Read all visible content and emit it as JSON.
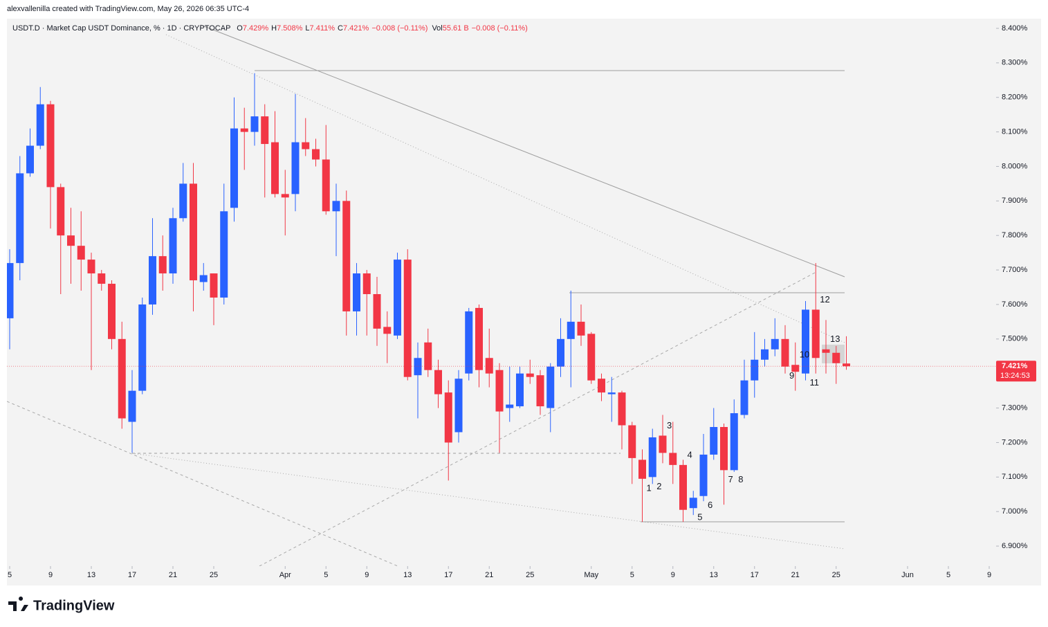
{
  "header": {
    "credit": "alexvallenilla created with TradingView.com, May 26, 2026 06:35 UTC-4",
    "symbol": "USDT.D · Market Cap USDT Dominance, % · 1D · CRYPTOCAP",
    "ohlc": [
      {
        "label": "O",
        "value": "7.429%"
      },
      {
        "label": "H",
        "value": "7.508%"
      },
      {
        "label": "L",
        "value": "7.411%"
      },
      {
        "label": "C",
        "value": "7.421%"
      }
    ],
    "change": "−0.008 (−0.11%)",
    "volume_label": "Vol",
    "volume": "55.61 B",
    "volume_change": "−0.008 (−0.11%)"
  },
  "chart_data": {
    "type": "candlestick",
    "x": [
      "2026-03-05",
      "2026-03-06",
      "2026-03-07",
      "2026-03-08",
      "2026-03-09",
      "2026-03-10",
      "2026-03-11",
      "2026-03-12",
      "2026-03-13",
      "2026-03-14",
      "2026-03-15",
      "2026-03-16",
      "2026-03-17",
      "2026-03-18",
      "2026-03-19",
      "2026-03-20",
      "2026-03-21",
      "2026-03-22",
      "2026-03-23",
      "2026-03-24",
      "2026-03-25",
      "2026-03-26",
      "2026-03-27",
      "2026-03-28",
      "2026-03-29",
      "2026-03-30",
      "2026-03-31",
      "2026-04-01",
      "2026-04-02",
      "2026-04-03",
      "2026-04-04",
      "2026-04-05",
      "2026-04-06",
      "2026-04-07",
      "2026-04-08",
      "2026-04-09",
      "2026-04-10",
      "2026-04-11",
      "2026-04-12",
      "2026-04-13",
      "2026-04-14",
      "2026-04-15",
      "2026-04-16",
      "2026-04-17",
      "2026-04-18",
      "2026-04-19",
      "2026-04-20",
      "2026-04-21",
      "2026-04-22",
      "2026-04-23",
      "2026-04-24",
      "2026-04-25",
      "2026-04-26",
      "2026-04-27",
      "2026-04-28",
      "2026-04-29",
      "2026-04-30",
      "2026-05-01",
      "2026-05-02",
      "2026-05-03",
      "2026-05-04",
      "2026-05-05",
      "2026-05-06",
      "2026-05-07",
      "2026-05-08",
      "2026-05-09",
      "2026-05-10",
      "2026-05-11",
      "2026-05-12",
      "2026-05-13",
      "2026-05-14",
      "2026-05-15",
      "2026-05-16",
      "2026-05-17",
      "2026-05-18",
      "2026-05-19",
      "2026-05-20",
      "2026-05-21",
      "2026-05-22",
      "2026-05-23",
      "2026-05-24",
      "2026-05-25",
      "2026-05-26"
    ],
    "open": [
      7.56,
      7.72,
      7.98,
      8.06,
      8.18,
      7.94,
      7.8,
      7.77,
      7.73,
      7.69,
      7.66,
      7.5,
      7.26,
      7.35,
      7.6,
      7.74,
      7.69,
      7.85,
      7.95,
      7.665,
      7.69,
      7.62,
      7.88,
      8.11,
      8.1,
      8.145,
      8.07,
      7.92,
      7.92,
      8.07,
      8.05,
      8.02,
      7.87,
      7.9,
      7.58,
      7.69,
      7.63,
      7.535,
      7.51,
      7.73,
      7.395,
      7.49,
      7.41,
      7.345,
      7.23,
      7.4,
      7.59,
      7.445,
      7.41,
      7.3,
      7.305,
      7.4,
      7.395,
      7.3,
      7.42,
      7.5,
      7.55,
      7.515,
      7.385,
      7.34,
      7.345,
      7.25,
      7.15,
      7.1,
      7.22,
      7.17,
      7.135,
      7.01,
      7.045,
      7.165,
      7.245,
      7.12,
      7.28,
      7.38,
      7.44,
      7.47,
      7.5,
      7.425,
      7.4,
      7.585,
      7.47,
      7.46,
      7.429
    ],
    "high": [
      7.76,
      8.03,
      8.11,
      8.23,
      8.19,
      7.95,
      7.88,
      7.87,
      7.75,
      7.7,
      7.67,
      7.55,
      7.41,
      7.62,
      7.85,
      7.8,
      7.88,
      8.01,
      8.01,
      7.72,
      7.69,
      7.95,
      8.2,
      8.17,
      8.27,
      8.18,
      8.16,
      7.99,
      8.21,
      8.14,
      8.08,
      8.12,
      7.95,
      7.93,
      7.72,
      7.7,
      7.68,
      7.58,
      7.75,
      7.76,
      7.49,
      7.53,
      7.44,
      7.38,
      7.41,
      7.59,
      7.6,
      7.53,
      7.43,
      7.42,
      7.42,
      7.44,
      7.41,
      7.43,
      7.56,
      7.64,
      7.6,
      7.52,
      7.4,
      7.39,
      7.35,
      7.26,
      7.18,
      7.24,
      7.28,
      7.26,
      7.15,
      7.06,
      7.225,
      7.3,
      7.255,
      7.325,
      7.44,
      7.52,
      7.5,
      7.56,
      7.54,
      7.49,
      7.61,
      7.72,
      7.555,
      7.48,
      7.508
    ],
    "low": [
      7.47,
      7.67,
      7.97,
      8.05,
      7.82,
      7.63,
      7.66,
      7.64,
      7.41,
      7.64,
      7.47,
      7.24,
      7.17,
      7.34,
      7.57,
      7.64,
      7.66,
      7.84,
      7.58,
      7.64,
      7.54,
      7.6,
      7.84,
      7.99,
      8.06,
      7.91,
      7.91,
      7.8,
      7.87,
      8.03,
      8.0,
      7.86,
      7.74,
      7.51,
      7.51,
      7.51,
      7.48,
      7.43,
      7.5,
      7.38,
      7.27,
      7.39,
      7.3,
      7.09,
      7.2,
      7.38,
      7.36,
      7.36,
      7.17,
      7.26,
      7.3,
      7.37,
      7.28,
      7.23,
      7.39,
      7.36,
      7.48,
      7.37,
      7.32,
      7.26,
      7.18,
      7.08,
      6.97,
      7.08,
      7.14,
      7.08,
      6.97,
      6.99,
      7.03,
      7.15,
      7.02,
      7.115,
      7.27,
      7.33,
      7.42,
      7.45,
      7.4,
      7.35,
      7.38,
      7.4,
      7.4,
      7.37,
      7.411
    ],
    "close": [
      7.72,
      7.98,
      8.06,
      8.18,
      7.94,
      7.8,
      7.77,
      7.73,
      7.69,
      7.66,
      7.5,
      7.27,
      7.35,
      7.6,
      7.74,
      7.69,
      7.85,
      7.95,
      7.67,
      7.685,
      7.62,
      7.87,
      8.11,
      8.1,
      8.145,
      8.065,
      7.92,
      7.91,
      8.07,
      8.05,
      8.02,
      7.87,
      7.9,
      7.58,
      7.69,
      7.63,
      7.53,
      7.515,
      7.73,
      7.39,
      7.445,
      7.41,
      7.34,
      7.2,
      7.385,
      7.58,
      7.41,
      7.4,
      7.29,
      7.31,
      7.4,
      7.39,
      7.305,
      7.42,
      7.5,
      7.55,
      7.51,
      7.38,
      7.345,
      7.345,
      7.25,
      7.155,
      7.095,
      7.215,
      7.17,
      7.135,
      7.005,
      7.04,
      7.165,
      7.245,
      7.12,
      7.285,
      7.38,
      7.44,
      7.47,
      7.5,
      7.42,
      7.405,
      7.585,
      7.445,
      7.46,
      7.43,
      7.421
    ],
    "up_color": "#2962ff",
    "down_color": "#f23645",
    "ylim": [
      6.842,
      8.428
    ],
    "yticks": [
      {
        "value": 6.9,
        "label": "6.900%"
      },
      {
        "value": 7.0,
        "label": "7.000%"
      },
      {
        "value": 7.1,
        "label": "7.100%"
      },
      {
        "value": 7.2,
        "label": "7.200%"
      },
      {
        "value": 7.3,
        "label": "7.300%"
      },
      {
        "value": 7.4,
        "label": "7.400%"
      },
      {
        "value": 7.5,
        "label": "7.500%"
      },
      {
        "value": 7.6,
        "label": "7.600%"
      },
      {
        "value": 7.7,
        "label": "7.700%"
      },
      {
        "value": 7.8,
        "label": "7.800%"
      },
      {
        "value": 7.9,
        "label": "7.900%"
      },
      {
        "value": 8.0,
        "label": "8.000%"
      },
      {
        "value": 8.1,
        "label": "8.100%"
      },
      {
        "value": 8.2,
        "label": "8.200%"
      },
      {
        "value": 8.3,
        "label": "8.300%"
      },
      {
        "value": 8.4,
        "label": "8.400%"
      }
    ],
    "xlim": [
      "2026-03-04",
      "2026-06-10"
    ],
    "xticks": [
      {
        "value": "2026-03-05",
        "label": "5"
      },
      {
        "value": "2026-03-09",
        "label": "9"
      },
      {
        "value": "2026-03-13",
        "label": "13"
      },
      {
        "value": "2026-03-17",
        "label": "17"
      },
      {
        "value": "2026-03-21",
        "label": "21"
      },
      {
        "value": "2026-03-25",
        "label": "25"
      },
      {
        "value": "2026-04-01",
        "label": "Apr"
      },
      {
        "value": "2026-04-05",
        "label": "5"
      },
      {
        "value": "2026-04-09",
        "label": "9"
      },
      {
        "value": "2026-04-13",
        "label": "13"
      },
      {
        "value": "2026-04-17",
        "label": "17"
      },
      {
        "value": "2026-04-21",
        "label": "21"
      },
      {
        "value": "2026-04-25",
        "label": "25"
      },
      {
        "value": "2026-05-01",
        "label": "May"
      },
      {
        "value": "2026-05-05",
        "label": "5"
      },
      {
        "value": "2026-05-09",
        "label": "9"
      },
      {
        "value": "2026-05-13",
        "label": "13"
      },
      {
        "value": "2026-05-17",
        "label": "17"
      },
      {
        "value": "2026-05-21",
        "label": "21"
      },
      {
        "value": "2026-05-25",
        "label": "25"
      },
      {
        "value": "2026-06-01",
        "label": "Jun"
      },
      {
        "value": "2026-06-05",
        "label": "5"
      },
      {
        "value": "2026-06-09",
        "label": "9"
      }
    ],
    "annotations": [
      {
        "text": "1",
        "date": "2026-05-06",
        "side": "below"
      },
      {
        "text": "2",
        "date": "2026-05-07",
        "side": "below"
      },
      {
        "text": "3",
        "date": "2026-05-08",
        "side": "above"
      },
      {
        "text": "4",
        "date": "2026-05-10",
        "side": "above"
      },
      {
        "text": "5",
        "date": "2026-05-11",
        "side": "below"
      },
      {
        "text": "6",
        "date": "2026-05-12",
        "side": "below"
      },
      {
        "text": "7",
        "date": "2026-05-14",
        "side": "below"
      },
      {
        "text": "8",
        "date": "2026-05-15",
        "side": "below"
      },
      {
        "text": "9",
        "date": "2026-05-20",
        "side": "below"
      },
      {
        "text": "10",
        "date": "2026-05-21",
        "side": "above"
      },
      {
        "text": "11",
        "date": "2026-05-22",
        "side": "below"
      },
      {
        "text": "12",
        "date": "2026-05-23",
        "side": "above"
      },
      {
        "text": "13",
        "date": "2026-05-24",
        "side": "above"
      }
    ],
    "last_price_label": "7.421%",
    "countdown": "13:24:53"
  },
  "footer": {
    "brand": "TradingView"
  }
}
